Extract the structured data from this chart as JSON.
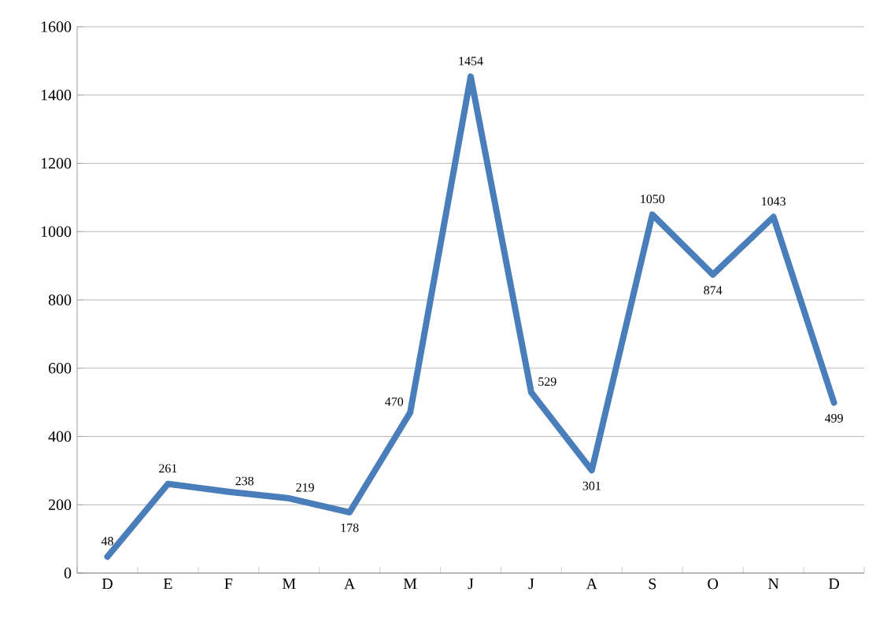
{
  "chart_data": {
    "type": "line",
    "categories": [
      "D",
      "E",
      "F",
      "M",
      "A",
      "M",
      "J",
      "J",
      "A",
      "S",
      "O",
      "N",
      "D"
    ],
    "series": [
      {
        "color": "#4a7ebb",
        "values": [
          48,
          261,
          238,
          219,
          178,
          470,
          1454,
          529,
          301,
          1050,
          874,
          1043,
          499
        ]
      }
    ],
    "ylim": [
      0,
      1600
    ],
    "yticks": [
      0,
      200,
      400,
      600,
      800,
      1000,
      1200,
      1400,
      1600
    ],
    "grid": "y",
    "data_labels": true,
    "marker": "none",
    "line_style": "solid"
  }
}
